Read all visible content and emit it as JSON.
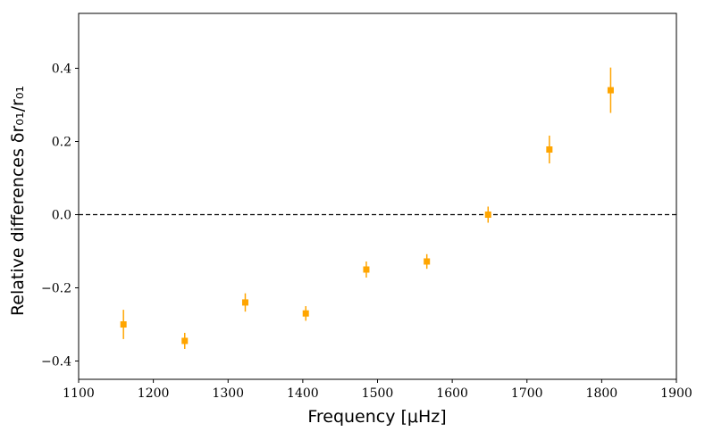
{
  "chart_data": {
    "type": "scatter",
    "title": "",
    "xlabel": "Frequency [μHz]",
    "ylabel": "Relative differences δr₀₁/r₀₁",
    "xlim": [
      1100,
      1900
    ],
    "ylim": [
      -0.45,
      0.55
    ],
    "xticks": [
      1100,
      1200,
      1300,
      1400,
      1500,
      1600,
      1700,
      1800,
      1900
    ],
    "xtick_labels": [
      "1100",
      "1200",
      "1300",
      "1400",
      "1500",
      "1600",
      "1700",
      "1800",
      "1900"
    ],
    "yticks": [
      -0.4,
      -0.2,
      0.0,
      0.2,
      0.4
    ],
    "ytick_labels": [
      "−0.4",
      "−0.2",
      "0.0",
      "0.2",
      "0.4"
    ],
    "grid": false,
    "reference_line": {
      "y": 0.0,
      "style": "dashed",
      "color": "#000000"
    },
    "series": [
      {
        "marker": "square",
        "color": "#FFA500",
        "points": [
          {
            "x": 1160,
            "y": -0.3,
            "yerr": 0.04
          },
          {
            "x": 1242,
            "y": -0.345,
            "yerr": 0.022
          },
          {
            "x": 1323,
            "y": -0.24,
            "yerr": 0.025
          },
          {
            "x": 1404,
            "y": -0.27,
            "yerr": 0.02
          },
          {
            "x": 1485,
            "y": -0.15,
            "yerr": 0.022
          },
          {
            "x": 1566,
            "y": -0.128,
            "yerr": 0.02
          },
          {
            "x": 1648,
            "y": 0.0,
            "yerr": 0.022
          },
          {
            "x": 1730,
            "y": 0.178,
            "yerr": 0.038
          },
          {
            "x": 1812,
            "y": 0.34,
            "yerr": 0.062
          }
        ]
      }
    ]
  }
}
